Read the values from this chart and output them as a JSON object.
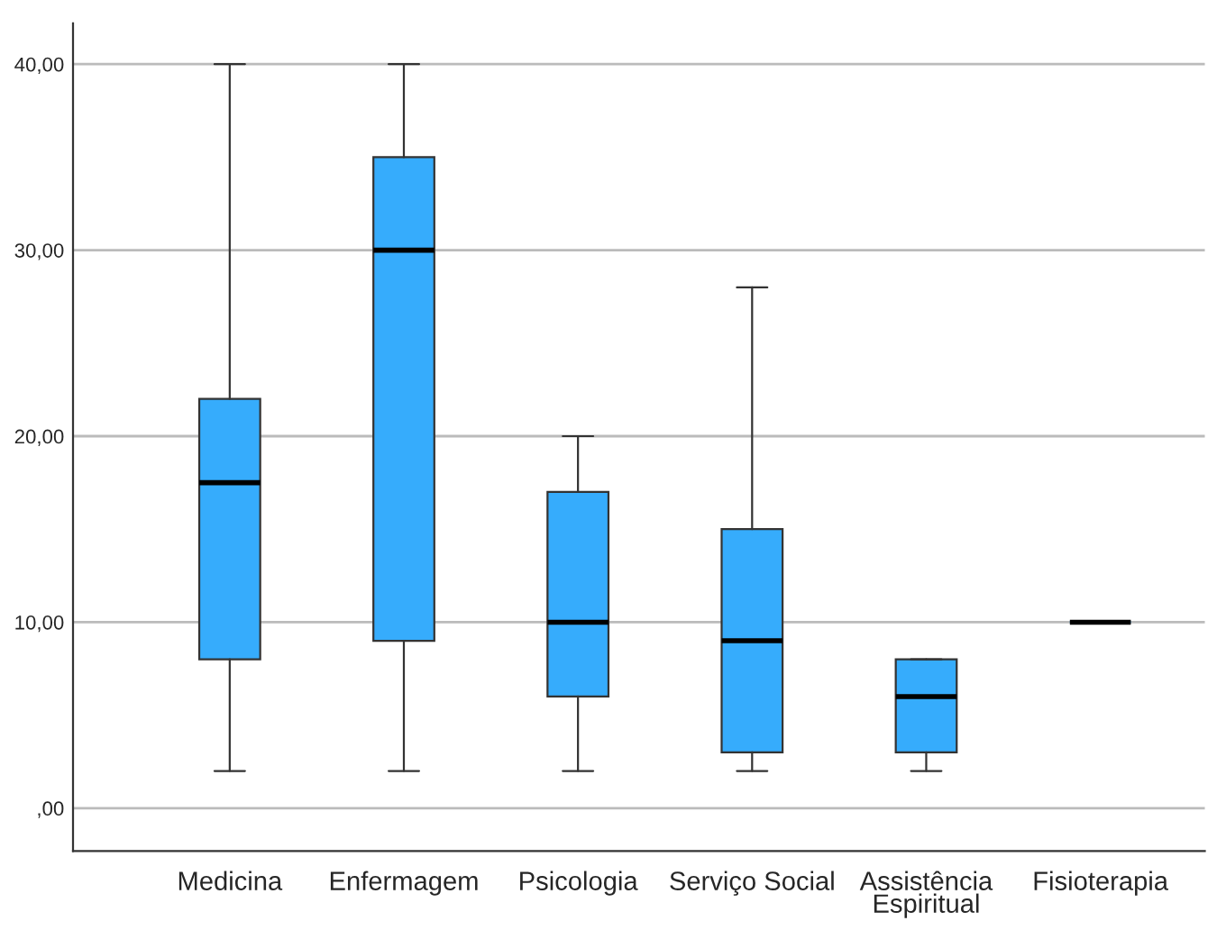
{
  "chart_data": {
    "type": "box",
    "categories": [
      "Medicina",
      "Enfermagem",
      "Psicologia",
      "Serviço Social",
      "Assistência Espiritual",
      "Fisioterapia"
    ],
    "boxes": [
      {
        "low": 2,
        "q1": 8,
        "median": 17.5,
        "q3": 22,
        "high": 40
      },
      {
        "low": 2,
        "q1": 9,
        "median": 30,
        "q3": 35,
        "high": 40
      },
      {
        "low": 2,
        "q1": 6,
        "median": 10,
        "q3": 17,
        "high": 20
      },
      {
        "low": 2,
        "q1": 3,
        "median": 9,
        "q3": 15,
        "high": 28
      },
      {
        "low": 2,
        "q1": 3,
        "median": 6,
        "q3": 8,
        "high": 8
      },
      {
        "low": 10,
        "q1": 10,
        "median": 10,
        "q3": 10,
        "high": 10
      }
    ],
    "color": "#36acfc",
    "ylim": [
      -2.3,
      42.2
    ],
    "yticks": [
      {
        "value": 0,
        "label": ",00"
      },
      {
        "value": 10,
        "label": "10,00"
      },
      {
        "value": 20,
        "label": "20,00"
      },
      {
        "value": 30,
        "label": "30,00"
      },
      {
        "value": 40,
        "label": "40,00"
      }
    ],
    "grid": "y"
  }
}
